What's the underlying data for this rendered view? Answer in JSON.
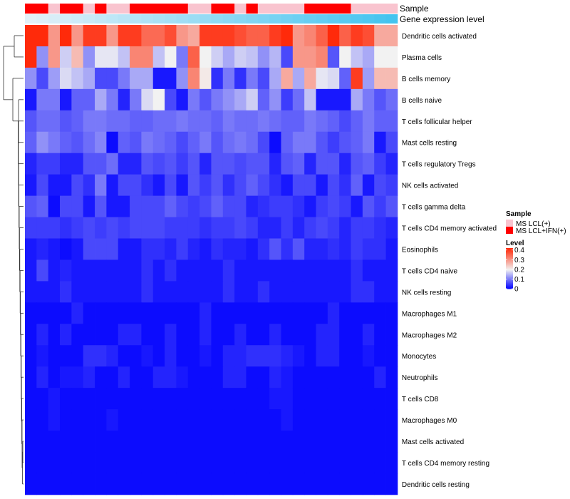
{
  "chart_data": {
    "type": "heatmap",
    "title": "",
    "annotation_tracks": [
      "Sample",
      "Gene expression level"
    ],
    "rows": [
      "Dendritic cells activated",
      "Plasma cells",
      "B cells memory",
      "B cells naive",
      "T cells follicular helper",
      "Mast cells resting",
      "T cells regulatory  Tregs",
      "NK cells activated",
      "T cells gamma delta",
      "T cells CD4 memory activated",
      "Eosinophils",
      "T cells CD4 naive",
      "NK cells resting",
      "Macrophages M1",
      "Macrophages M2",
      "Monocytes",
      "Neutrophils",
      "T cells CD8",
      "Macrophages M0",
      "Mast cells activated",
      "T cells CD4 memory resting",
      "Dendritic cells resting"
    ],
    "sample_groups": [
      "MS LCL+IFN(+)",
      "MS LCL+IFN(+)",
      "MS LCL(+)",
      "MS LCL+IFN(+)",
      "MS LCL+IFN(+)",
      "MS LCL(+)",
      "MS LCL+IFN(+)",
      "MS LCL(+)",
      "MS LCL(+)",
      "MS LCL+IFN(+)",
      "MS LCL+IFN(+)",
      "MS LCL+IFN(+)",
      "MS LCL+IFN(+)",
      "MS LCL+IFN(+)",
      "MS LCL(+)",
      "MS LCL(+)",
      "MS LCL+IFN(+)",
      "MS LCL+IFN(+)",
      "MS LCL(+)",
      "MS LCL+IFN(+)",
      "MS LCL(+)",
      "MS LCL(+)",
      "MS LCL(+)",
      "MS LCL(+)",
      "MS LCL+IFN(+)",
      "MS LCL+IFN(+)",
      "MS LCL+IFN(+)",
      "MS LCL+IFN(+)",
      "MS LCL(+)",
      "MS LCL(+)",
      "MS LCL(+)",
      "MS LCL(+)"
    ],
    "gene_expression_level_range": [
      0,
      1
    ],
    "values": [
      [
        0.42,
        0.44,
        0.3,
        0.44,
        0.3,
        0.4,
        0.4,
        0.3,
        0.4,
        0.4,
        0.35,
        0.35,
        0.38,
        0.3,
        0.28,
        0.4,
        0.4,
        0.4,
        0.38,
        0.36,
        0.36,
        0.4,
        0.44,
        0.3,
        0.32,
        0.36,
        0.44,
        0.36,
        0.4,
        0.38,
        0.28,
        0.28
      ],
      [
        0.44,
        0.12,
        0.3,
        0.17,
        0.26,
        0.12,
        0.19,
        0.19,
        0.16,
        0.32,
        0.32,
        0.16,
        0.2,
        0.1,
        0.36,
        0.2,
        0.17,
        0.14,
        0.17,
        0.16,
        0.12,
        0.15,
        0.06,
        0.3,
        0.3,
        0.32,
        0.07,
        0.2,
        0.16,
        0.14,
        0.2,
        0.2
      ],
      [
        0.12,
        0.06,
        0.13,
        0.18,
        0.16,
        0.14,
        0.06,
        0.06,
        0.1,
        0.14,
        0.14,
        0.02,
        0.02,
        0.12,
        0.32,
        0.21,
        0.04,
        0.1,
        0.04,
        0.1,
        0.06,
        0.14,
        0.28,
        0.14,
        0.28,
        0.19,
        0.18,
        0.08,
        0.4,
        0.13,
        0.26,
        0.26
      ],
      [
        0.02,
        0.1,
        0.1,
        0.02,
        0.08,
        0.08,
        0.14,
        0.1,
        0.03,
        0.1,
        0.18,
        0.2,
        0.06,
        0.02,
        0.1,
        0.07,
        0.1,
        0.12,
        0.14,
        0.17,
        0.08,
        0.12,
        0.05,
        0.09,
        0.16,
        0.02,
        0.02,
        0.02,
        0.14,
        0.1,
        0.07,
        0.09
      ],
      [
        0.07,
        0.09,
        0.09,
        0.07,
        0.08,
        0.1,
        0.1,
        0.09,
        0.09,
        0.08,
        0.08,
        0.09,
        0.09,
        0.1,
        0.09,
        0.09,
        0.08,
        0.1,
        0.09,
        0.09,
        0.1,
        0.09,
        0.08,
        0.08,
        0.1,
        0.09,
        0.08,
        0.06,
        0.08,
        0.1,
        0.08,
        0.08
      ],
      [
        0.08,
        0.12,
        0.1,
        0.08,
        0.07,
        0.09,
        0.11,
        0.01,
        0.08,
        0.07,
        0.1,
        0.09,
        0.08,
        0.06,
        0.08,
        0.1,
        0.07,
        0.09,
        0.1,
        0.09,
        0.06,
        0.01,
        0.08,
        0.1,
        0.1,
        0.07,
        0.05,
        0.07,
        0.08,
        0.1,
        0.02,
        0.06
      ],
      [
        0.03,
        0.05,
        0.05,
        0.03,
        0.03,
        0.07,
        0.07,
        0.09,
        0.03,
        0.03,
        0.07,
        0.06,
        0.07,
        0.05,
        0.07,
        0.03,
        0.07,
        0.07,
        0.06,
        0.07,
        0.07,
        0.03,
        0.07,
        0.08,
        0.03,
        0.07,
        0.07,
        0.03,
        0.07,
        0.08,
        0.05,
        0.03
      ],
      [
        0.02,
        0.06,
        0.02,
        0.02,
        0.06,
        0.04,
        0.1,
        0.02,
        0.06,
        0.06,
        0.04,
        0.02,
        0.06,
        0.02,
        0.07,
        0.05,
        0.07,
        0.04,
        0.06,
        0.08,
        0.06,
        0.04,
        0.02,
        0.06,
        0.06,
        0.02,
        0.06,
        0.04,
        0.08,
        0.02,
        0.06,
        0.05
      ],
      [
        0.07,
        0.08,
        0.01,
        0.06,
        0.06,
        0.02,
        0.07,
        0.02,
        0.02,
        0.06,
        0.06,
        0.06,
        0.08,
        0.06,
        0.05,
        0.06,
        0.08,
        0.06,
        0.06,
        0.03,
        0.04,
        0.05,
        0.05,
        0.04,
        0.02,
        0.05,
        0.06,
        0.05,
        0.02,
        0.07,
        0.05,
        0.07
      ],
      [
        0.05,
        0.05,
        0.05,
        0.04,
        0.05,
        0.06,
        0.05,
        0.06,
        0.05,
        0.06,
        0.06,
        0.06,
        0.05,
        0.05,
        0.05,
        0.04,
        0.05,
        0.05,
        0.06,
        0.05,
        0.03,
        0.03,
        0.05,
        0.03,
        0.05,
        0.06,
        0.05,
        0.03,
        0.05,
        0.05,
        0.04,
        0.03
      ],
      [
        0.02,
        0.03,
        0.02,
        0.01,
        0.02,
        0.06,
        0.06,
        0.06,
        0.02,
        0.02,
        0.04,
        0.04,
        0.03,
        0.05,
        0.03,
        0.02,
        0.04,
        0.03,
        0.03,
        0.02,
        0.04,
        0.07,
        0.04,
        0.07,
        0.03,
        0.03,
        0.04,
        0.03,
        0.05,
        0.04,
        0.04,
        0.02
      ],
      [
        0.02,
        0.06,
        0.02,
        0.03,
        0.02,
        0.02,
        0.02,
        0.02,
        0.02,
        0.02,
        0.04,
        0.02,
        0.04,
        0.02,
        0.02,
        0.02,
        0.02,
        0.04,
        0.02,
        0.02,
        0.02,
        0.02,
        0.02,
        0.02,
        0.02,
        0.02,
        0.02,
        0.02,
        0.04,
        0.02,
        0.02,
        0.02
      ],
      [
        0.02,
        0.02,
        0.02,
        0.04,
        0.02,
        0.02,
        0.02,
        0.02,
        0.02,
        0.02,
        0.04,
        0.02,
        0.02,
        0.02,
        0.02,
        0.02,
        0.02,
        0.04,
        0.02,
        0.02,
        0.04,
        0.02,
        0.02,
        0.02,
        0.02,
        0.02,
        0.02,
        0.02,
        0.04,
        0.04,
        0.02,
        0.02
      ],
      [
        0.01,
        0.01,
        0.01,
        0.01,
        0.03,
        0.01,
        0.01,
        0.01,
        0.01,
        0.01,
        0.01,
        0.01,
        0.01,
        0.01,
        0.01,
        0.03,
        0.01,
        0.01,
        0.01,
        0.01,
        0.01,
        0.01,
        0.01,
        0.01,
        0.01,
        0.01,
        0.03,
        0.01,
        0.01,
        0.01,
        0.01,
        0.01
      ],
      [
        0.01,
        0.03,
        0.01,
        0.03,
        0.01,
        0.01,
        0.01,
        0.01,
        0.03,
        0.03,
        0.01,
        0.01,
        0.03,
        0.01,
        0.01,
        0.03,
        0.01,
        0.01,
        0.03,
        0.01,
        0.01,
        0.03,
        0.01,
        0.01,
        0.01,
        0.03,
        0.03,
        0.01,
        0.01,
        0.03,
        0.01,
        0.01
      ],
      [
        0.01,
        0.02,
        0.01,
        0.01,
        0.01,
        0.04,
        0.04,
        0.03,
        0.01,
        0.01,
        0.02,
        0.01,
        0.03,
        0.01,
        0.01,
        0.02,
        0.01,
        0.03,
        0.03,
        0.04,
        0.04,
        0.04,
        0.03,
        0.02,
        0.01,
        0.03,
        0.03,
        0.01,
        0.01,
        0.02,
        0.01,
        0.01
      ],
      [
        0.01,
        0.03,
        0.01,
        0.02,
        0.02,
        0.03,
        0.01,
        0.01,
        0.03,
        0.01,
        0.01,
        0.03,
        0.03,
        0.02,
        0.01,
        0.01,
        0.01,
        0.03,
        0.03,
        0.01,
        0.01,
        0.03,
        0.02,
        0.01,
        0.01,
        0.01,
        0.01,
        0.01,
        0.01,
        0.01,
        0.03,
        0.01
      ],
      [
        0.01,
        0.01,
        0.02,
        0.01,
        0.01,
        0.01,
        0.01,
        0.01,
        0.01,
        0.01,
        0.01,
        0.01,
        0.01,
        0.01,
        0.01,
        0.01,
        0.01,
        0.01,
        0.01,
        0.01,
        0.01,
        0.02,
        0.02,
        0.01,
        0.01,
        0.01,
        0.01,
        0.01,
        0.01,
        0.01,
        0.01,
        0.01
      ],
      [
        0.01,
        0.01,
        0.02,
        0.01,
        0.01,
        0.01,
        0.01,
        0.02,
        0.01,
        0.01,
        0.01,
        0.01,
        0.01,
        0.01,
        0.01,
        0.01,
        0.01,
        0.01,
        0.01,
        0.01,
        0.01,
        0.01,
        0.02,
        0.01,
        0.01,
        0.01,
        0.01,
        0.01,
        0.01,
        0.01,
        0.01,
        0.01
      ],
      [
        0.01,
        0.01,
        0.01,
        0.01,
        0.01,
        0.01,
        0.01,
        0.01,
        0.01,
        0.01,
        0.01,
        0.01,
        0.01,
        0.01,
        0.01,
        0.01,
        0.01,
        0.01,
        0.01,
        0.01,
        0.01,
        0.01,
        0.01,
        0.01,
        0.01,
        0.01,
        0.01,
        0.01,
        0.01,
        0.01,
        0.01,
        0.01
      ],
      [
        0.01,
        0.01,
        0.01,
        0.01,
        0.01,
        0.01,
        0.01,
        0.01,
        0.01,
        0.01,
        0.01,
        0.01,
        0.01,
        0.01,
        0.01,
        0.01,
        0.01,
        0.01,
        0.01,
        0.01,
        0.01,
        0.01,
        0.01,
        0.01,
        0.01,
        0.01,
        0.01,
        0.01,
        0.01,
        0.01,
        0.01,
        0.01
      ],
      [
        0.01,
        0.01,
        0.01,
        0.01,
        0.01,
        0.01,
        0.01,
        0.01,
        0.01,
        0.01,
        0.01,
        0.01,
        0.01,
        0.01,
        0.01,
        0.01,
        0.01,
        0.01,
        0.01,
        0.01,
        0.01,
        0.01,
        0.01,
        0.01,
        0.01,
        0.01,
        0.01,
        0.01,
        0.01,
        0.01,
        0.01,
        0.01
      ]
    ],
    "legend": {
      "sample_title": "Sample",
      "sample_entries": [
        {
          "label": "MS LCL(+)",
          "color": "#f9c4cf"
        },
        {
          "label": "MS LCL+IFN(+)",
          "color": "#ff0000"
        }
      ],
      "level_title": "Level",
      "level_ticks": [
        {
          "label": "0.4",
          "value": 0.4
        },
        {
          "label": "0.3",
          "value": 0.3
        },
        {
          "label": "0.2",
          "value": 0.2
        },
        {
          "label": "0.1",
          "value": 0.1
        },
        {
          "label": "0",
          "value": 0.0
        }
      ],
      "level_range": [
        0,
        0.42
      ]
    },
    "colors": {
      "low": "#0000ff",
      "mid": "#f2f2f2",
      "high": "#ff2a0a",
      "gene_expr_start": "#e2f1f9",
      "gene_expr_end": "#44c4ef"
    }
  }
}
